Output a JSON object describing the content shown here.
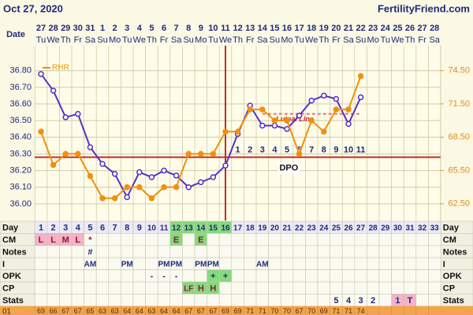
{
  "header": {
    "date": "Oct 27, 2020",
    "site": "FertilityFriend.com"
  },
  "chart_data": {
    "type": "line",
    "date_label": "Date",
    "categories": [
      "27",
      "28",
      "29",
      "30",
      "31",
      "1",
      "2",
      "3",
      "4",
      "5",
      "6",
      "7",
      "8",
      "9",
      "10",
      "11",
      "12",
      "13",
      "14",
      "15",
      "16",
      "17",
      "18",
      "19",
      "20",
      "21",
      "22",
      "23",
      "24",
      "25",
      "26",
      "27",
      "28"
    ],
    "weekdays": [
      "Tu",
      "We",
      "Th",
      "Fr",
      "Sa",
      "Su",
      "Mo",
      "Tu",
      "We",
      "Th",
      "Fr",
      "Sa",
      "Su",
      "Mo",
      "Tu",
      "We",
      "Th",
      "Fr",
      "Sa",
      "Su",
      "Mo",
      "Tu",
      "We",
      "Th",
      "Fr",
      "Sa",
      "Su",
      "Mo",
      "Tu",
      "We",
      "Th",
      "Fr",
      "Sa"
    ],
    "series": [
      {
        "color": "#5530c8",
        "values": [
          36.78,
          36.68,
          36.52,
          36.54,
          36.34,
          36.24,
          36.18,
          36.04,
          36.19,
          36.16,
          36.2,
          36.17,
          36.1,
          36.13,
          36.16,
          36.23,
          36.42,
          36.59,
          36.47,
          36.47,
          36.45,
          36.53,
          36.62,
          36.65,
          36.63,
          36.48,
          36.64,
          null,
          null,
          null,
          null,
          null,
          null
        ]
      },
      {
        "name": "RHR",
        "color": "#f0900f",
        "axis": "y2",
        "values": [
          69,
          66,
          67,
          67,
          65,
          63,
          63,
          64,
          64,
          63,
          64,
          64,
          67,
          67,
          67,
          69,
          69,
          71,
          71,
          70,
          70,
          67,
          70,
          69,
          71,
          71,
          74,
          null,
          null,
          null,
          null,
          null,
          null
        ]
      }
    ],
    "ylim": [
      35.9,
      36.95
    ],
    "yticks": [
      {
        "value": 36,
        "label": "36.00"
      },
      {
        "value": 36.1,
        "label": "36.10"
      },
      {
        "value": 36.2,
        "label": "36.20"
      },
      {
        "value": 36.3,
        "label": "36.30"
      },
      {
        "value": 36.4,
        "label": "36.40"
      },
      {
        "value": 36.5,
        "label": "36.50"
      },
      {
        "value": 36.6,
        "label": "36.60"
      },
      {
        "value": 36.7,
        "label": "36.70"
      },
      {
        "value": 36.8,
        "label": "36.80"
      }
    ],
    "y2lim": [
      61,
      76.74
    ],
    "y2ticks": [
      {
        "value": 62.5,
        "label": "62.50"
      },
      {
        "value": 65.5,
        "label": "65.50"
      },
      {
        "value": 68.5,
        "label": "68.50"
      },
      {
        "value": 71.5,
        "label": "71.50"
      },
      {
        "value": 74.5,
        "label": "74.50"
      }
    ],
    "coverline": 36.28,
    "luteal_line": {
      "label": "Luteal Line",
      "value": 36.54
    },
    "dpo": {
      "label": "DPO",
      "values": [
        null,
        null,
        null,
        null,
        null,
        null,
        null,
        null,
        null,
        null,
        null,
        null,
        null,
        null,
        null,
        null,
        1,
        2,
        3,
        4,
        5,
        6,
        7,
        8,
        9,
        10,
        11,
        null,
        null,
        null,
        null,
        null,
        null
      ]
    },
    "grid": true,
    "rhr_row_label": "01"
  },
  "table": {
    "rows": [
      {
        "label": "Day",
        "cells": [
          1,
          2,
          3,
          4,
          5,
          6,
          7,
          8,
          9,
          10,
          11,
          12,
          13,
          14,
          15,
          16,
          17,
          18,
          19,
          20,
          21,
          22,
          23,
          24,
          25,
          26,
          27,
          28,
          29,
          30,
          31,
          32,
          33
        ]
      },
      {
        "label": "CM",
        "cells": [
          "L",
          "L",
          "M",
          "L",
          "*",
          null,
          null,
          null,
          null,
          null,
          null,
          "E",
          null,
          "E",
          null,
          null,
          null,
          null,
          null,
          null,
          null,
          null,
          null,
          null,
          null,
          null,
          null,
          null,
          null,
          null,
          null,
          null,
          null
        ]
      },
      {
        "label": "Notes",
        "cells": [
          null,
          null,
          null,
          null,
          "#",
          null,
          null,
          null,
          null,
          null,
          null,
          null,
          null,
          null,
          null,
          null,
          null,
          null,
          null,
          null,
          null,
          null,
          null,
          null,
          null,
          null,
          null,
          null,
          null,
          null,
          null,
          null,
          null
        ]
      },
      {
        "label": "I",
        "cells": [
          null,
          null,
          null,
          null,
          "AM",
          null,
          null,
          "PM",
          null,
          null,
          "PM",
          "PM",
          null,
          "PM",
          "PM",
          null,
          null,
          null,
          "AM",
          null,
          null,
          null,
          null,
          null,
          null,
          null,
          null,
          null,
          null,
          null,
          null,
          null,
          null
        ]
      },
      {
        "label": "OPK",
        "cells": [
          null,
          null,
          null,
          null,
          null,
          null,
          null,
          null,
          null,
          "-",
          "-",
          "-",
          null,
          null,
          "+",
          "+",
          null,
          null,
          null,
          null,
          null,
          null,
          null,
          null,
          null,
          null,
          null,
          null,
          null,
          null,
          null,
          null,
          null
        ]
      },
      {
        "label": "CP",
        "cells": [
          null,
          null,
          null,
          null,
          null,
          null,
          null,
          null,
          null,
          null,
          null,
          null,
          "LF",
          "H",
          "H",
          null,
          null,
          null,
          null,
          null,
          null,
          null,
          null,
          null,
          null,
          null,
          null,
          null,
          null,
          null,
          null,
          null,
          null
        ]
      },
      {
        "label": "Stats",
        "cells": [
          null,
          null,
          null,
          null,
          null,
          null,
          null,
          null,
          null,
          null,
          null,
          null,
          null,
          null,
          null,
          null,
          null,
          null,
          null,
          null,
          null,
          null,
          null,
          null,
          "5",
          "4",
          "3",
          "2",
          null,
          "1",
          "T",
          null,
          null
        ]
      }
    ]
  }
}
